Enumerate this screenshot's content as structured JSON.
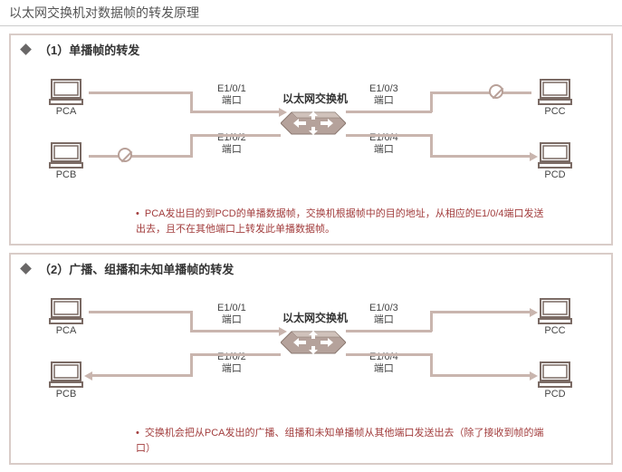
{
  "page_title": "以太网交换机对数据帧的转发原理",
  "colors": {
    "line": "#c9b5ae",
    "arrow": "#c9b5ae",
    "border": "#d9ccc8",
    "pc_stroke": "#7a6a64",
    "switch_fill": "#b5a29b",
    "caption": "#a23d3d"
  },
  "panels": [
    {
      "header": "（1）单播帧的转发",
      "switch_label": "以太网交换机",
      "pcs": {
        "tl": "PCA",
        "bl": "PCB",
        "tr": "PCC",
        "br": "PCD"
      },
      "ports": {
        "tl": {
          "name": "E1/0/1",
          "sub": "端口"
        },
        "bl": {
          "name": "E1/0/2",
          "sub": "端口"
        },
        "tr": {
          "name": "E1/0/3",
          "sub": "端口"
        },
        "br": {
          "name": "E1/0/4",
          "sub": "端口"
        }
      },
      "flows": {
        "tl_in": true,
        "bl_in": false,
        "tr_out": false,
        "br_out": true,
        "bl_blocked": true,
        "tr_blocked": true
      },
      "caption": "PCA发出目的到PCD的单播数据帧，交换机根据帧中的目的地址，从相应的E1/0/4端口发送出去，且不在其他端口上转发此单播数据帧。"
    },
    {
      "header": "（2）广播、组播和未知单播帧的转发",
      "switch_label": "以太网交换机",
      "pcs": {
        "tl": "PCA",
        "bl": "PCB",
        "tr": "PCC",
        "br": "PCD"
      },
      "ports": {
        "tl": {
          "name": "E1/0/1",
          "sub": "端口"
        },
        "bl": {
          "name": "E1/0/2",
          "sub": "端口"
        },
        "tr": {
          "name": "E1/0/3",
          "sub": "端口"
        },
        "br": {
          "name": "E1/0/4",
          "sub": "端口"
        }
      },
      "flows": {
        "tl_in": true,
        "bl_out": true,
        "tr_out": true,
        "br_out": true
      },
      "caption": "交换机会把从PCA发出的广播、组播和未知单播帧从其他端口发送出去（除了接收到帧的端口）"
    }
  ]
}
